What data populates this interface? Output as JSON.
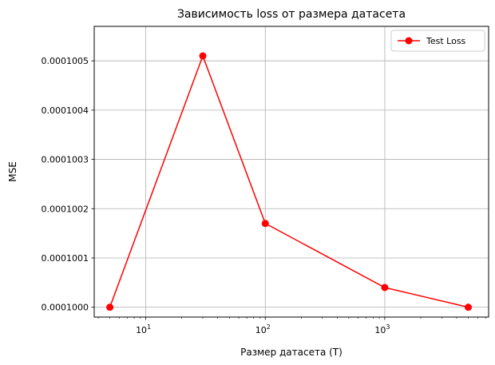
{
  "chart_data": {
    "type": "line",
    "title": "Зависимость loss от размера датасета",
    "xlabel": "Размер датасета (T)",
    "ylabel": "MSE",
    "x_scale": "log",
    "xlim": [
      3.7,
      7400
    ],
    "ylim": [
      9.998e-05,
      0.00010057
    ],
    "grid": true,
    "legend_position": "top-right",
    "x_ticks": [
      {
        "value": 10,
        "base": "10",
        "exp": "1"
      },
      {
        "value": 100,
        "base": "10",
        "exp": "2"
      },
      {
        "value": 1000,
        "base": "10",
        "exp": "3"
      }
    ],
    "y_ticks": [
      {
        "value": 0.0001,
        "label": "0.0001000"
      },
      {
        "value": 0.0001001,
        "label": "0.0001001"
      },
      {
        "value": 0.0001002,
        "label": "0.0001002"
      },
      {
        "value": 0.0001003,
        "label": "0.0001003"
      },
      {
        "value": 0.0001004,
        "label": "0.0001004"
      },
      {
        "value": 0.0001005,
        "label": "0.0001005"
      }
    ],
    "series": [
      {
        "name": "Test Loss",
        "color": "#ff0000",
        "marker": "circle",
        "x": [
          5,
          30,
          100,
          1000,
          5000
        ],
        "y": [
          0.0001,
          0.00010051,
          0.00010017,
          0.00010004,
          0.0001
        ]
      }
    ]
  }
}
